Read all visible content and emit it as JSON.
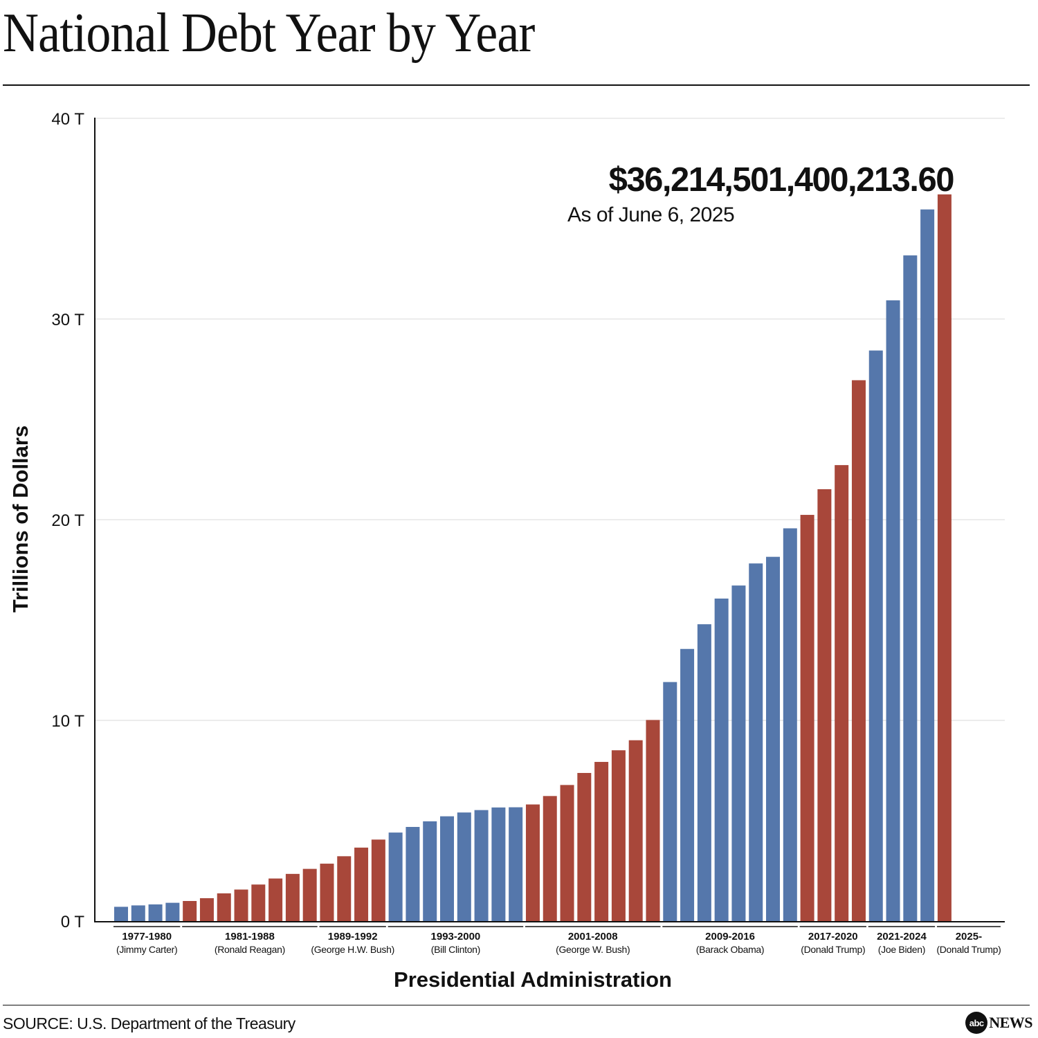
{
  "title": "National Debt Year by Year",
  "source": "SOURCE: U.S. Department of the Treasury",
  "logo": {
    "circle": "abc",
    "text": "NEWS"
  },
  "colors": {
    "democrat": "#5577ab",
    "republican": "#a8473a",
    "grid": "#d9d9d9",
    "axis": "#111111"
  },
  "chart_data": {
    "type": "bar",
    "ylabel": "Trillions of Dollars",
    "xlabel": "Presidential Administration",
    "ylim": [
      0,
      40
    ],
    "yticks": [
      "0 T",
      "10 T",
      "20 T",
      "30 T",
      "40 T"
    ],
    "grid": true,
    "annotation": {
      "value": "$36,214,501,400,213.60",
      "date": "As of June 6, 2025"
    },
    "administrations": [
      {
        "years": "1977-1980",
        "president": "(Jimmy Carter)",
        "party": "democrat",
        "values": [
          0.71,
          0.78,
          0.83,
          0.91
        ]
      },
      {
        "years": "1981-1988",
        "president": "(Ronald Reagan)",
        "party": "republican",
        "values": [
          1.0,
          1.14,
          1.38,
          1.57,
          1.82,
          2.12,
          2.35,
          2.6
        ]
      },
      {
        "years": "1989-1992",
        "president": "(George H.W. Bush)",
        "party": "republican",
        "values": [
          2.86,
          3.23,
          3.66,
          4.06
        ]
      },
      {
        "years": "1993-2000",
        "president": "(Bill Clinton)",
        "party": "democrat",
        "values": [
          4.41,
          4.69,
          4.97,
          5.22,
          5.41,
          5.53,
          5.66,
          5.67
        ]
      },
      {
        "years": "2001-2008",
        "president": "(George W. Bush)",
        "party": "republican",
        "values": [
          5.81,
          6.23,
          6.78,
          7.38,
          7.93,
          8.51,
          9.01,
          10.02
        ]
      },
      {
        "years": "2009-2016",
        "president": "(Barack Obama)",
        "party": "democrat",
        "values": [
          11.91,
          13.56,
          14.79,
          16.07,
          16.72,
          17.82,
          18.15,
          19.57
        ]
      },
      {
        "years": "2017-2020",
        "president": "(Donald Trump)",
        "party": "republican",
        "values": [
          20.24,
          21.52,
          22.72,
          26.95
        ]
      },
      {
        "years": "2021-2024",
        "president": "(Joe Biden)",
        "party": "democrat",
        "values": [
          28.43,
          30.93,
          33.17,
          35.46
        ]
      },
      {
        "years": "2025-",
        "president": "(Donald Trump)",
        "party": "republican",
        "values": [
          36.21
        ]
      }
    ]
  }
}
